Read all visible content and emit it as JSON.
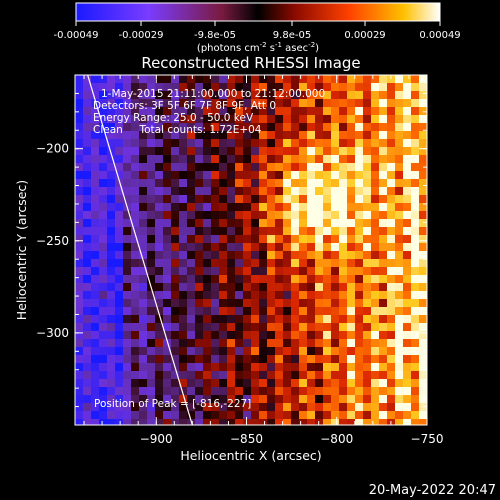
{
  "colorbar": {
    "tick_labels": [
      "-0.00049",
      "-0.00029",
      "-9.8e-05",
      "9.8e-05",
      "0.00029",
      "0.00049"
    ],
    "unit_label": "(photons cm",
    "unit_exp1": "-2",
    "unit_mid": " s",
    "unit_exp2": "-1",
    "unit_tail": " asec",
    "unit_exp3": "-2",
    "unit_close": ")"
  },
  "chart_data": {
    "type": "heatmap",
    "title": "Reconstructed RHESSI Image",
    "xlabel": "Heliocentric X (arcsec)",
    "ylabel": "Heliocentric Y (arcsec)",
    "xlim": [
      -945,
      -750
    ],
    "ylim": [
      -350,
      -160
    ],
    "x_ticks": [
      -900,
      -850,
      -800,
      -750
    ],
    "y_ticks": [
      -200,
      -250,
      -300
    ],
    "colormap": "hot-blue diverging",
    "color_range": [
      -0.00049,
      0.00049
    ],
    "peak": [
      -816,
      -227
    ],
    "limb_line": [
      [
        -938,
        -160
      ],
      [
        -880,
        -350
      ]
    ]
  },
  "annotations": {
    "line1": "1-May-2015 21:11:00.000 to 21:12:00.000",
    "line2": "Detectors: 3F 5F 6F 7F 8F 9F, Att 0",
    "line3": "Energy Range: 25.0 - 50.0 keV",
    "line4": "Clean     Total counts: 1.72E+04",
    "peak_text": "Position of Peak = [-816,-227]"
  },
  "timestamp": "20-May-2022 20:47",
  "colors": {
    "background": "#000000",
    "text": "#ffffff"
  }
}
